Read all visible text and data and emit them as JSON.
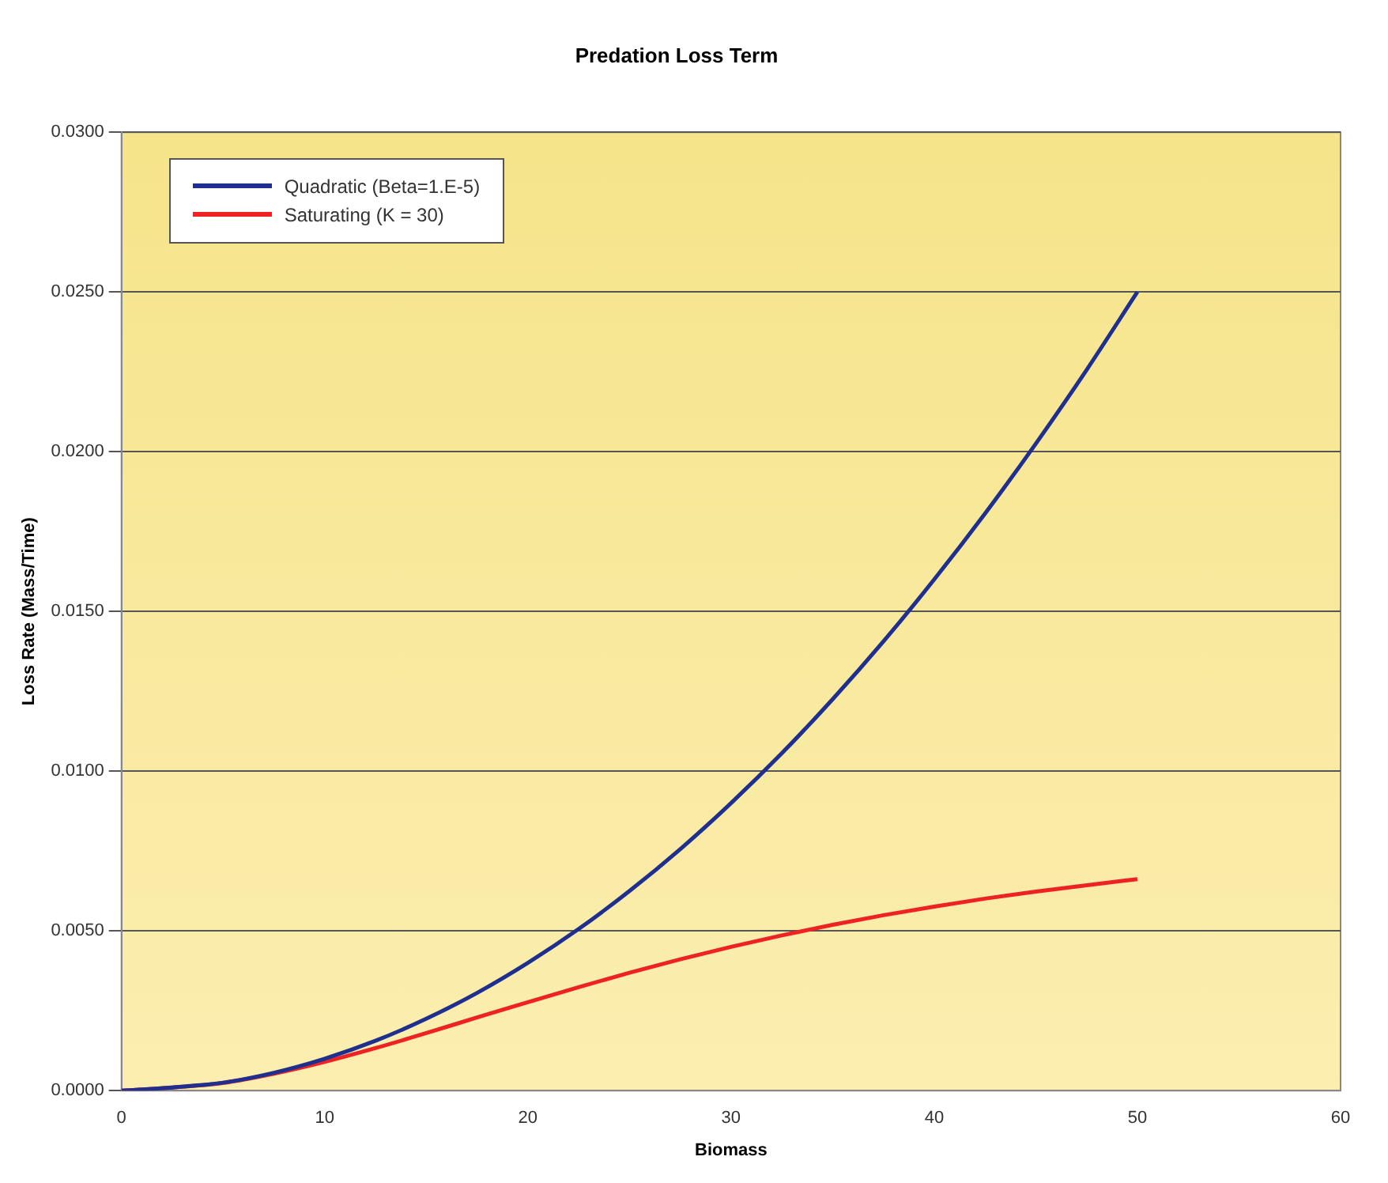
{
  "chart_data": {
    "type": "line",
    "title": "Predation Loss Term",
    "xlabel": "Biomass",
    "ylabel": "Loss Rate (Mass/Time)",
    "x": [
      0,
      2.5,
      5,
      7.5,
      10,
      12.5,
      15,
      17.5,
      20,
      22.5,
      25,
      27.5,
      30,
      32.5,
      35,
      37.5,
      40,
      42.5,
      45,
      47.5,
      50
    ],
    "series": [
      {
        "name": "Quadratic (Beta=1.E-5)",
        "color": "#1f2f8f",
        "values": [
          0,
          0.0001,
          0.00025,
          0.00056,
          0.001,
          0.00156,
          0.00225,
          0.00306,
          0.004,
          0.00506,
          0.00625,
          0.00756,
          0.009,
          0.01056,
          0.01225,
          0.01406,
          0.016,
          0.01806,
          0.02025,
          0.02256,
          0.025
        ]
      },
      {
        "name": "Saturating (K = 30)",
        "color": "#ee2222",
        "values": [
          0,
          0.0001,
          0.00024,
          0.00053,
          0.0009,
          0.00133,
          0.0018,
          0.00229,
          0.00277,
          0.00324,
          0.00369,
          0.00411,
          0.0045,
          0.00486,
          0.00519,
          0.00549,
          0.00576,
          0.00601,
          0.00623,
          0.00643,
          0.00662
        ]
      }
    ],
    "xlim": [
      0,
      60
    ],
    "xticks": [
      0,
      10,
      20,
      30,
      40,
      50,
      60
    ],
    "ylim": [
      0,
      0.03
    ],
    "yticks": [
      {
        "value": 0,
        "label": "0.0000"
      },
      {
        "value": 0.005,
        "label": "0.0050"
      },
      {
        "value": 0.01,
        "label": "0.0100"
      },
      {
        "value": 0.015,
        "label": "0.0150"
      },
      {
        "value": 0.02,
        "label": "0.0200"
      },
      {
        "value": 0.025,
        "label": "0.0250"
      },
      {
        "value": 0.03,
        "label": "0.0300"
      }
    ],
    "grid": "y",
    "legend": "top left",
    "marker": "none",
    "line_style": "solid"
  }
}
